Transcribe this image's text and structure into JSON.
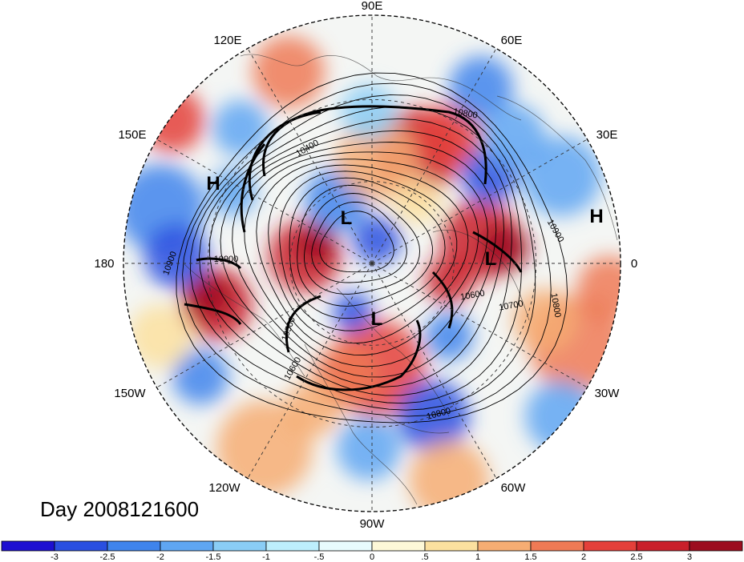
{
  "title": "Day 2008121600",
  "longitude_labels": {
    "lon_90e": "90E",
    "lon_60e": "60E",
    "lon_30e": "30E",
    "lon_0": "0",
    "lon_30w": "30W",
    "lon_60w": "60W",
    "lon_90w": "90W",
    "lon_120w": "120W",
    "lon_150w": "150W",
    "lon_180": "180",
    "lon_150e": "150E",
    "lon_120e": "120E"
  },
  "pressure_centers": [
    {
      "label": "H"
    },
    {
      "label": "L"
    },
    {
      "label": "H"
    },
    {
      "label": "L"
    },
    {
      "label": "L"
    }
  ],
  "contour_labels": [
    {
      "text": "10800"
    },
    {
      "text": "10400"
    },
    {
      "text": "10900"
    },
    {
      "text": "10900"
    },
    {
      "text": "10600"
    },
    {
      "text": "10700"
    },
    {
      "text": "10800"
    },
    {
      "text": "10900"
    },
    {
      "text": "10600"
    },
    {
      "text": "10500"
    },
    {
      "text": "10800"
    }
  ],
  "colorbar": {
    "ticks": [
      "-3",
      "-2.5",
      "-2",
      "-1.5",
      "-1",
      "-.5",
      "0",
      ".5",
      "1",
      "1.5",
      "2",
      "2.5",
      "3"
    ],
    "colors": [
      "#1d0fd1",
      "#2a4fe0",
      "#3f84ec",
      "#5fa6f2",
      "#8acdf6",
      "#bdeefc",
      "#e8fbfd",
      "#fdf8d8",
      "#fbe09f",
      "#f6ad73",
      "#ef7a55",
      "#e4403a",
      "#c9202b",
      "#9c0d1f"
    ]
  }
}
